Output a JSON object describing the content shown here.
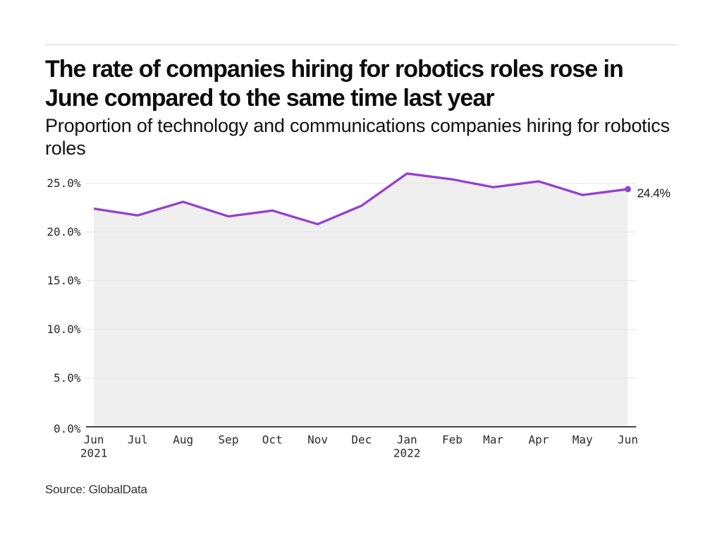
{
  "header": {
    "title_lines": [
      "The rate of companies hiring for robotics roles rose in",
      "June compared to the same time last year"
    ],
    "subtitle_lines": [
      "Proportion of technology and communications companies hiring for robotics",
      "roles"
    ]
  },
  "chart_data": {
    "type": "line",
    "title": "The rate of companies hiring for robotics roles rose in June compared to the same time last year",
    "subtitle": "Proportion of technology and communications companies hiring for robotics roles",
    "x": [
      "Jun",
      "Jul",
      "Aug",
      "Sep",
      "Oct",
      "Nov",
      "Dec",
      "Jan",
      "Feb",
      "Mar",
      "Apr",
      "May",
      "Jun"
    ],
    "x_dates": [
      "2021-06-01",
      "2021-07-01",
      "2021-08-01",
      "2021-09-01",
      "2021-10-01",
      "2021-11-01",
      "2021-12-01",
      "2022-01-01",
      "2022-02-01",
      "2022-03-01",
      "2022-04-01",
      "2022-05-01",
      "2022-06-01"
    ],
    "x_years": [
      {
        "index": 0,
        "label": "2021"
      },
      {
        "index": 7,
        "label": "2022"
      }
    ],
    "values": [
      22.4,
      21.7,
      23.1,
      21.6,
      22.2,
      20.8,
      22.7,
      26.0,
      25.4,
      24.6,
      25.2,
      23.8,
      24.4
    ],
    "unit": "%",
    "ylim": [
      0,
      25
    ],
    "y_ticks": [
      {
        "value": 25,
        "label": "25.0%"
      },
      {
        "value": 20,
        "label": "20.0%"
      },
      {
        "value": 15,
        "label": "15.0%"
      },
      {
        "value": 10,
        "label": "10.0%"
      },
      {
        "value": 5,
        "label": "5.0%"
      },
      {
        "value": 0,
        "label": "0.0%"
      }
    ],
    "grid": "horizontal",
    "legend": "none",
    "end_label": "24.4%",
    "line_color": "#9440d4",
    "area_color": "#efefef",
    "grid_color": "#e7e7e7",
    "axis_color": "#111111"
  },
  "footer": {
    "source": "Source: GlobalData"
  }
}
